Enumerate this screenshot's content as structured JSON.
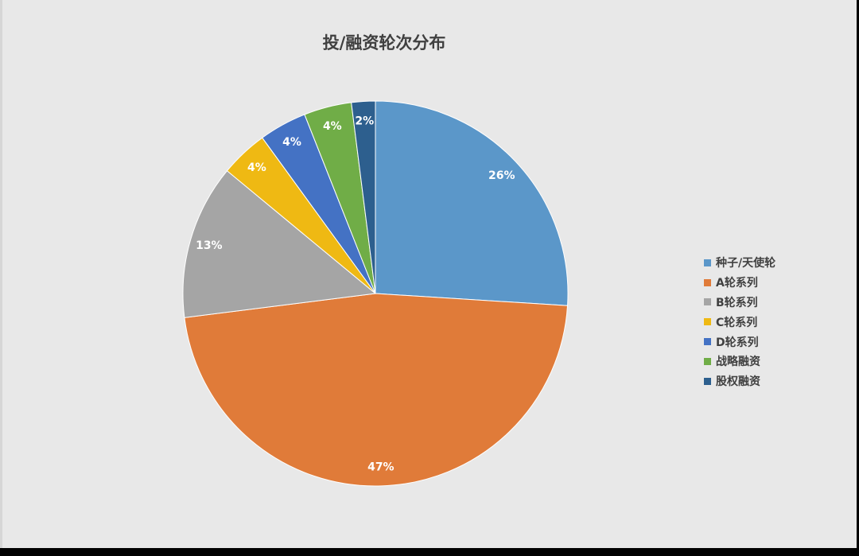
{
  "chart_data": {
    "type": "pie",
    "title": "投/融资轮次分布",
    "categories": [
      "种子/天使轮",
      "A轮系列",
      "B轮系列",
      "C轮系列",
      "D轮系列",
      "战略融资",
      "股权融资"
    ],
    "values": [
      26,
      47,
      13,
      4,
      4,
      4,
      2
    ],
    "data_labels": [
      "26%",
      "47%",
      "13%",
      "4%",
      "4%",
      "4%",
      "2%"
    ],
    "colors": [
      "#5b97c9",
      "#e07b39",
      "#a5a5a5",
      "#efb913",
      "#4472c4",
      "#70ad47",
      "#2d5f8e"
    ],
    "start_angle": "12 o'clock",
    "direction": "clockwise",
    "legend_position": "right"
  }
}
